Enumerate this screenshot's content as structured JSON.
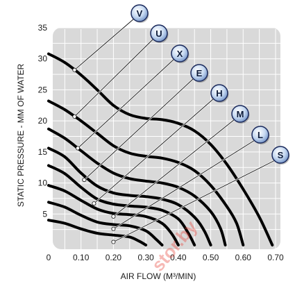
{
  "chart_data": {
    "type": "line",
    "title": "",
    "xlabel": "AIR FLOW (M³/MIN)",
    "ylabel": "STATIC PRESSURE - MM OF WATER",
    "xlim": [
      0,
      0.7
    ],
    "ylim": [
      0,
      35
    ],
    "x_ticks": [
      {
        "value": 0,
        "label": "0"
      },
      {
        "value": 0.1,
        "label": "0.10"
      },
      {
        "value": 0.2,
        "label": "0.20"
      },
      {
        "value": 0.3,
        "label": "0.30"
      },
      {
        "value": 0.4,
        "label": "0.40"
      },
      {
        "value": 0.5,
        "label": "0.50"
      },
      {
        "value": 0.6,
        "label": "0.60"
      },
      {
        "value": 0.7,
        "label": "0.70"
      }
    ],
    "y_ticks": [
      {
        "value": 5,
        "label": "5"
      },
      {
        "value": 10,
        "label": "10"
      },
      {
        "value": 15,
        "label": "15"
      },
      {
        "value": 20,
        "label": "20"
      },
      {
        "value": 25,
        "label": "25"
      },
      {
        "value": 30,
        "label": "30"
      },
      {
        "value": 35,
        "label": "35"
      }
    ],
    "grid": true,
    "series": [
      {
        "name": "V",
        "marker": [
          0.08,
          28.2
        ],
        "points": [
          [
            0,
            30.8
          ],
          [
            0.05,
            29.4
          ],
          [
            0.1,
            27.4
          ],
          [
            0.15,
            25
          ],
          [
            0.2,
            22.5
          ],
          [
            0.25,
            21
          ],
          [
            0.3,
            20.4
          ],
          [
            0.35,
            20.2
          ],
          [
            0.4,
            19.6
          ],
          [
            0.45,
            18.4
          ],
          [
            0.5,
            16.2
          ],
          [
            0.55,
            13
          ],
          [
            0.6,
            9
          ],
          [
            0.65,
            4.5
          ],
          [
            0.69,
            0
          ]
        ]
      },
      {
        "name": "U",
        "marker": [
          0.08,
          20.7
        ],
        "points": [
          [
            0,
            23.2
          ],
          [
            0.05,
            21.8
          ],
          [
            0.1,
            20
          ],
          [
            0.15,
            18
          ],
          [
            0.2,
            16
          ],
          [
            0.25,
            14.8
          ],
          [
            0.3,
            14.3
          ],
          [
            0.35,
            14
          ],
          [
            0.4,
            13.3
          ],
          [
            0.45,
            12
          ],
          [
            0.5,
            9.6
          ],
          [
            0.55,
            6.2
          ],
          [
            0.58,
            3.5
          ],
          [
            0.6,
            0
          ]
        ]
      },
      {
        "name": "X",
        "marker": [
          0.09,
          15.6
        ],
        "points": [
          [
            0,
            18.7
          ],
          [
            0.05,
            17.2
          ],
          [
            0.1,
            15.2
          ],
          [
            0.15,
            13.2
          ],
          [
            0.2,
            11.6
          ],
          [
            0.25,
            10.7
          ],
          [
            0.3,
            10.3
          ],
          [
            0.35,
            10
          ],
          [
            0.4,
            9.3
          ],
          [
            0.45,
            7.9
          ],
          [
            0.5,
            5.4
          ],
          [
            0.53,
            2.7
          ],
          [
            0.545,
            0
          ]
        ]
      },
      {
        "name": "E",
        "marker": [
          0.11,
          10.5
        ],
        "points": [
          [
            0,
            15.6
          ],
          [
            0.05,
            14.2
          ],
          [
            0.1,
            11.6
          ],
          [
            0.15,
            9.5
          ],
          [
            0.2,
            8.4
          ],
          [
            0.25,
            8
          ],
          [
            0.3,
            7.8
          ],
          [
            0.35,
            7.4
          ],
          [
            0.4,
            6.5
          ],
          [
            0.45,
            4.5
          ],
          [
            0.48,
            2.3
          ],
          [
            0.5,
            0
          ]
        ]
      },
      {
        "name": "H",
        "marker": [
          0.14,
          6.7
        ],
        "points": [
          [
            0,
            12.8
          ],
          [
            0.05,
            11.5
          ],
          [
            0.1,
            9.3
          ],
          [
            0.15,
            7.4
          ],
          [
            0.2,
            6.6
          ],
          [
            0.25,
            6.3
          ],
          [
            0.3,
            6.1
          ],
          [
            0.35,
            5.6
          ],
          [
            0.4,
            4.2
          ],
          [
            0.43,
            2
          ],
          [
            0.45,
            0
          ]
        ]
      },
      {
        "name": "M",
        "marker": [
          0.2,
          4.6
        ],
        "points": [
          [
            0,
            9.6
          ],
          [
            0.05,
            8.7
          ],
          [
            0.1,
            7.2
          ],
          [
            0.15,
            5.8
          ],
          [
            0.2,
            5.1
          ],
          [
            0.25,
            4.9
          ],
          [
            0.3,
            4.6
          ],
          [
            0.35,
            3.5
          ],
          [
            0.38,
            1.8
          ],
          [
            0.4,
            0
          ]
        ]
      },
      {
        "name": "L",
        "marker": [
          0.2,
          2.6
        ],
        "points": [
          [
            0,
            6.9
          ],
          [
            0.05,
            6.1
          ],
          [
            0.1,
            4.8
          ],
          [
            0.15,
            3.7
          ],
          [
            0.2,
            3.3
          ],
          [
            0.25,
            3.1
          ],
          [
            0.3,
            2.3
          ],
          [
            0.33,
            1
          ],
          [
            0.35,
            0
          ]
        ]
      },
      {
        "name": "S",
        "marker": [
          0.2,
          0.5
        ],
        "points": [
          [
            0,
            4
          ],
          [
            0.05,
            3.5
          ],
          [
            0.1,
            2.6
          ],
          [
            0.15,
            1.9
          ],
          [
            0.2,
            1.6
          ],
          [
            0.25,
            1.3
          ],
          [
            0.28,
            0.6
          ],
          [
            0.3,
            0
          ]
        ]
      }
    ]
  },
  "watermark": "stor.by",
  "colors": {
    "plot_bg": "#d9d9d9",
    "grid": "#ffffff",
    "curve": "#000000",
    "badge": "#bcd3ef",
    "badge_border": "#1b2a5c"
  }
}
